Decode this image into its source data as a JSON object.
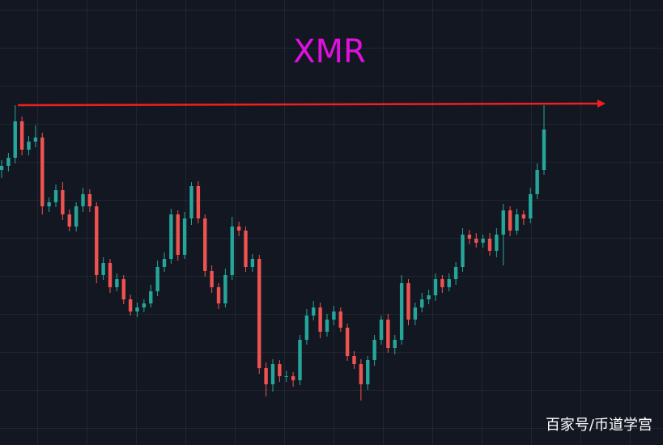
{
  "chart_data": {
    "type": "candlestick",
    "title": "XMR",
    "watermark": "百家号/币道学宫",
    "ylim": [
      0,
      550
    ],
    "up_color": "#26a69a",
    "down_color": "#ef5350",
    "open": [
      340,
      345,
      355,
      400,
      365,
      375,
      380,
      295,
      300,
      315,
      285,
      270,
      295,
      310,
      295,
      210,
      225,
      195,
      205,
      180,
      165,
      170,
      175,
      190,
      220,
      230,
      285,
      235,
      280,
      320,
      280,
      215,
      195,
      175,
      210,
      270,
      265,
      220,
      230,
      95,
      75,
      100,
      85,
      85,
      80,
      130,
      160,
      170,
      140,
      155,
      165,
      145,
      110,
      100,
      75,
      105,
      130,
      155,
      120,
      130,
      200,
      155,
      170,
      180,
      185,
      205,
      195,
      205,
      220,
      260,
      255,
      250,
      255,
      240,
      260,
      290,
      265,
      285,
      280,
      310,
      340
    ],
    "high": [
      352,
      361,
      420,
      406,
      382,
      395,
      386,
      306,
      322,
      325,
      291,
      300,
      318,
      316,
      300,
      232,
      230,
      212,
      210,
      186,
      176,
      180,
      198,
      228,
      238,
      292,
      290,
      288,
      325,
      326,
      285,
      222,
      200,
      218,
      282,
      276,
      270,
      236,
      235,
      102,
      106,
      105,
      92,
      90,
      136,
      168,
      178,
      176,
      162,
      172,
      170,
      150,
      116,
      106,
      110,
      136,
      160,
      162,
      136,
      210,
      205,
      176,
      188,
      192,
      212,
      210,
      212,
      226,
      268,
      266,
      262,
      260,
      262,
      268,
      298,
      295,
      292,
      290,
      318,
      348,
      420
    ],
    "low": [
      330,
      338,
      348,
      358,
      358,
      368,
      285,
      288,
      294,
      278,
      264,
      264,
      288,
      288,
      200,
      204,
      188,
      190,
      174,
      160,
      158,
      164,
      170,
      184,
      214,
      224,
      228,
      230,
      272,
      274,
      208,
      188,
      168,
      170,
      204,
      258,
      214,
      214,
      88,
      60,
      66,
      78,
      78,
      72,
      74,
      124,
      154,
      132,
      134,
      148,
      140,
      104,
      94,
      55,
      68,
      98,
      124,
      114,
      112,
      124,
      148,
      148,
      164,
      174,
      178,
      188,
      190,
      198,
      214,
      248,
      244,
      244,
      234,
      232,
      222,
      258,
      260,
      272,
      274,
      304,
      334
    ],
    "close": [
      345,
      355,
      400,
      365,
      375,
      380,
      295,
      300,
      315,
      285,
      270,
      295,
      310,
      295,
      210,
      225,
      195,
      205,
      180,
      165,
      170,
      175,
      190,
      220,
      230,
      285,
      235,
      280,
      320,
      280,
      215,
      195,
      175,
      210,
      270,
      265,
      220,
      230,
      95,
      75,
      100,
      85,
      85,
      80,
      130,
      160,
      170,
      140,
      155,
      165,
      145,
      110,
      100,
      75,
      105,
      130,
      155,
      120,
      130,
      200,
      155,
      170,
      180,
      185,
      205,
      195,
      205,
      220,
      260,
      255,
      250,
      255,
      240,
      260,
      290,
      265,
      285,
      280,
      310,
      340,
      390
    ]
  }
}
